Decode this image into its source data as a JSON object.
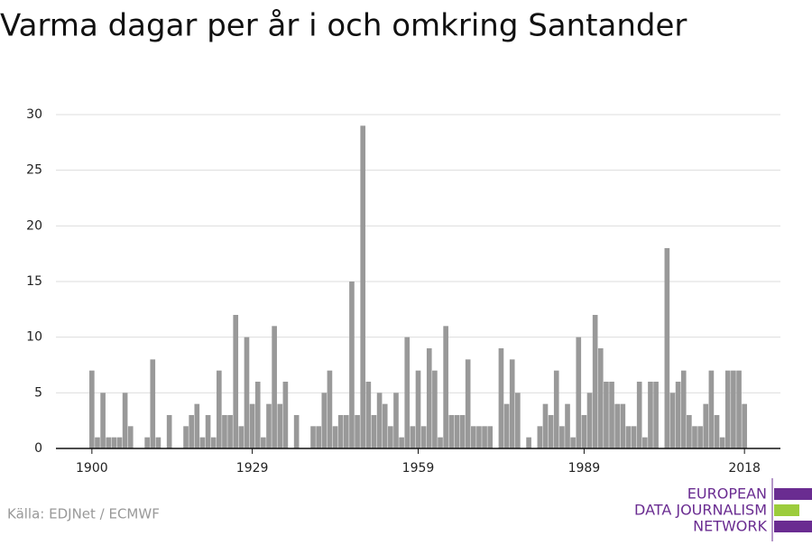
{
  "chart_data": {
    "type": "bar",
    "title": "Varma dagar per år i och omkring Santander",
    "source": "Källa: EDJNet / ECMWF",
    "logo": [
      "EUROPEAN",
      "DATA JOURNALISM",
      "NETWORK"
    ],
    "color": "#999999",
    "x": [
      1900,
      1901,
      1902,
      1903,
      1904,
      1905,
      1906,
      1907,
      1908,
      1909,
      1910,
      1911,
      1912,
      1913,
      1914,
      1915,
      1916,
      1917,
      1918,
      1919,
      1920,
      1921,
      1922,
      1923,
      1924,
      1925,
      1926,
      1927,
      1928,
      1929,
      1930,
      1931,
      1932,
      1933,
      1934,
      1935,
      1936,
      1937,
      1938,
      1939,
      1940,
      1941,
      1942,
      1943,
      1944,
      1945,
      1946,
      1947,
      1948,
      1949,
      1950,
      1951,
      1952,
      1953,
      1954,
      1955,
      1956,
      1957,
      1958,
      1959,
      1960,
      1961,
      1962,
      1963,
      1964,
      1965,
      1966,
      1967,
      1968,
      1969,
      1970,
      1971,
      1972,
      1973,
      1974,
      1975,
      1976,
      1977,
      1978,
      1979,
      1980,
      1981,
      1982,
      1983,
      1984,
      1985,
      1986,
      1987,
      1988,
      1989,
      1990,
      1991,
      1992,
      1993,
      1994,
      1995,
      1996,
      1997,
      1998,
      1999,
      2000,
      2001,
      2002,
      2003,
      2004,
      2005,
      2006,
      2007,
      2008,
      2009,
      2010,
      2011,
      2012,
      2013,
      2014,
      2015,
      2016,
      2017,
      2018
    ],
    "values": [
      7,
      1,
      5,
      1,
      1,
      1,
      5,
      2,
      0,
      0,
      1,
      8,
      1,
      0,
      3,
      0,
      0,
      2,
      3,
      4,
      1,
      3,
      1,
      7,
      3,
      3,
      12,
      2,
      10,
      4,
      6,
      1,
      4,
      11,
      4,
      6,
      0,
      3,
      0,
      0,
      2,
      2,
      5,
      7,
      2,
      3,
      3,
      15,
      3,
      29,
      6,
      3,
      5,
      4,
      2,
      5,
      1,
      10,
      2,
      7,
      2,
      9,
      7,
      1,
      11,
      3,
      3,
      3,
      8,
      2,
      2,
      2,
      2,
      0,
      9,
      4,
      8,
      5,
      0,
      1,
      0,
      2,
      4,
      3,
      7,
      2,
      4,
      1,
      10,
      3,
      5,
      12,
      9,
      6,
      6,
      4,
      4,
      2,
      2,
      6,
      1,
      6,
      6,
      0,
      18,
      5,
      6,
      7,
      3,
      2,
      2,
      4,
      7,
      3,
      1,
      7,
      7,
      7,
      4
    ],
    "xlim": [
      1893.5,
      2024.5
    ],
    "xticks": [
      1900,
      1929,
      1959,
      1989,
      2018
    ],
    "ylim": [
      0,
      30
    ],
    "yticks": [
      0,
      5,
      10,
      15,
      20,
      25,
      30
    ],
    "grid": true
  }
}
